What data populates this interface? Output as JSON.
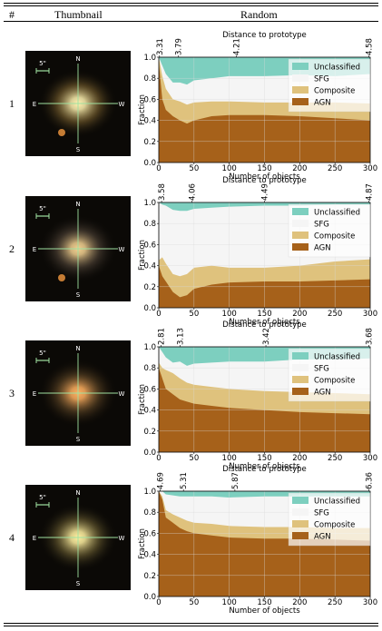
{
  "header": {
    "col1": "#",
    "col2": "Thumbnail",
    "col3": "Random"
  },
  "colors": {
    "unclassified": "#7dcfbf",
    "sfg": "#f5f5f5",
    "composite": "#dfc27d",
    "agn": "#a6611a",
    "grid": "#d9d9d9"
  },
  "legend_labels": [
    "Unclassified",
    "SFG",
    "Composite",
    "AGN"
  ],
  "rows": [
    {
      "label": "1",
      "thumb": {
        "scale": "5\"",
        "n": "N",
        "s": "S",
        "e": "E",
        "w": "W",
        "core_color": "#fff2b0",
        "halo_color": "#9a7a3a",
        "blob": true
      },
      "chart_data": {
        "type": "area",
        "stacking": "fraction",
        "xlabel": "Number of objects",
        "ylabel": "Fraction",
        "top_xlabel": "Distance to prototype",
        "xlim": [
          0,
          300
        ],
        "ylim": [
          0,
          1.0
        ],
        "xticks": [
          0,
          50,
          100,
          150,
          200,
          250,
          300
        ],
        "yticks": [
          "0.0",
          "0.2",
          "0.4",
          "0.6",
          "0.8",
          "1.0"
        ],
        "top_ticks": [
          {
            "x": 1,
            "label": "3.31"
          },
          {
            "x": 28,
            "label": "3.79"
          },
          {
            "x": 110,
            "label": "4.21"
          },
          {
            "x": 298,
            "label": "4.58"
          }
        ],
        "legend_position": "top-right",
        "x": [
          0,
          5,
          10,
          20,
          30,
          40,
          50,
          75,
          100,
          150,
          200,
          250,
          300
        ],
        "series": [
          {
            "name": "AGN",
            "values": [
              0.95,
              0.6,
              0.5,
              0.44,
              0.4,
              0.37,
              0.4,
              0.44,
              0.45,
              0.45,
              0.44,
              0.42,
              0.4
            ]
          },
          {
            "name": "Composite",
            "values": [
              1.0,
              0.82,
              0.7,
              0.6,
              0.58,
              0.55,
              0.57,
              0.58,
              0.58,
              0.57,
              0.57,
              0.57,
              0.56
            ]
          },
          {
            "name": "SFG",
            "values": [
              1.0,
              0.92,
              0.84,
              0.76,
              0.76,
              0.74,
              0.78,
              0.8,
              0.82,
              0.82,
              0.83,
              0.82,
              0.84
            ]
          },
          {
            "name": "Unclassified",
            "values": [
              1,
              1,
              1,
              1,
              1,
              1,
              1,
              1,
              1,
              1,
              1,
              1,
              1
            ]
          }
        ]
      }
    },
    {
      "label": "2",
      "thumb": {
        "scale": "5\"",
        "n": "N",
        "s": "S",
        "e": "E",
        "w": "W",
        "core_color": "#f2d090",
        "halo_color": "#6a5a4a",
        "blob": true
      },
      "chart_data": {
        "type": "area",
        "stacking": "fraction",
        "xlabel": "Number of objects",
        "ylabel": "Fraction",
        "top_xlabel": "Distance to prototype",
        "xlim": [
          0,
          300
        ],
        "ylim": [
          0,
          1.0
        ],
        "xticks": [
          0,
          50,
          100,
          150,
          200,
          250,
          300
        ],
        "yticks": [
          "0.0",
          "0.2",
          "0.4",
          "0.6",
          "0.8",
          "1.0"
        ],
        "top_ticks": [
          {
            "x": 4,
            "label": "3.58"
          },
          {
            "x": 47,
            "label": "4.06"
          },
          {
            "x": 150,
            "label": "4.49"
          },
          {
            "x": 298,
            "label": "4.87"
          }
        ],
        "legend_position": "top-right",
        "x": [
          0,
          5,
          10,
          20,
          30,
          40,
          50,
          75,
          100,
          150,
          200,
          250,
          300
        ],
        "series": [
          {
            "name": "AGN",
            "values": [
              0.4,
              0.3,
              0.25,
              0.15,
              0.1,
              0.12,
              0.18,
              0.22,
              0.24,
              0.25,
              0.25,
              0.26,
              0.27
            ]
          },
          {
            "name": "Composite",
            "values": [
              0.45,
              0.48,
              0.42,
              0.32,
              0.3,
              0.32,
              0.38,
              0.4,
              0.38,
              0.38,
              0.4,
              0.44,
              0.46
            ]
          },
          {
            "name": "SFG",
            "values": [
              1.0,
              0.98,
              0.97,
              0.93,
              0.92,
              0.92,
              0.94,
              0.95,
              0.96,
              0.97,
              0.97,
              0.98,
              0.98
            ]
          },
          {
            "name": "Unclassified",
            "values": [
              1,
              1,
              1,
              1,
              1,
              1,
              1,
              1,
              1,
              1,
              1,
              1,
              1
            ]
          }
        ]
      }
    },
    {
      "label": "3",
      "thumb": {
        "scale": "5\"",
        "n": "N",
        "s": "S",
        "e": "E",
        "w": "W",
        "core_color": "#ffb060",
        "halo_color": "#7a5a30",
        "blob": false
      },
      "chart_data": {
        "type": "area",
        "stacking": "fraction",
        "xlabel": "Number of objects",
        "ylabel": "Fraction",
        "top_xlabel": "Distance to prototype",
        "xlim": [
          0,
          300
        ],
        "ylim": [
          0,
          1.0
        ],
        "xticks": [
          0,
          50,
          100,
          150,
          200,
          250,
          300
        ],
        "yticks": [
          "0.0",
          "0.2",
          "0.4",
          "0.6",
          "0.8",
          "1.0"
        ],
        "top_ticks": [
          {
            "x": 3,
            "label": "2.81"
          },
          {
            "x": 30,
            "label": "3.13"
          },
          {
            "x": 152,
            "label": "3.42"
          },
          {
            "x": 298,
            "label": "3.68"
          }
        ],
        "legend_position": "top-right",
        "x": [
          0,
          5,
          10,
          20,
          30,
          40,
          50,
          75,
          100,
          150,
          200,
          250,
          300
        ],
        "series": [
          {
            "name": "AGN",
            "values": [
              0.8,
              0.7,
              0.6,
              0.55,
              0.5,
              0.48,
              0.46,
              0.44,
              0.42,
              0.4,
              0.38,
              0.37,
              0.36
            ]
          },
          {
            "name": "Composite",
            "values": [
              0.85,
              0.8,
              0.78,
              0.75,
              0.7,
              0.66,
              0.64,
              0.62,
              0.6,
              0.58,
              0.57,
              0.56,
              0.55
            ]
          },
          {
            "name": "SFG",
            "values": [
              1.0,
              0.95,
              0.9,
              0.85,
              0.86,
              0.82,
              0.84,
              0.85,
              0.86,
              0.86,
              0.88,
              0.88,
              0.89
            ]
          },
          {
            "name": "Unclassified",
            "values": [
              1,
              1,
              1,
              1,
              1,
              1,
              1,
              1,
              1,
              1,
              1,
              1,
              1
            ]
          }
        ]
      }
    },
    {
      "label": "4",
      "thumb": {
        "scale": "5\"",
        "n": "N",
        "s": "S",
        "e": "E",
        "w": "W",
        "core_color": "#fff0a0",
        "halo_color": "#8a7a40",
        "blob": false
      },
      "chart_data": {
        "type": "area",
        "stacking": "fraction",
        "xlabel": "Number of objects",
        "ylabel": "Fraction",
        "top_xlabel": "Distance to prototype",
        "xlim": [
          0,
          300
        ],
        "ylim": [
          0,
          1.0
        ],
        "xticks": [
          0,
          50,
          100,
          150,
          200,
          250,
          300
        ],
        "yticks": [
          "0.0",
          "0.2",
          "0.4",
          "0.6",
          "0.8",
          "1.0"
        ],
        "top_ticks": [
          {
            "x": 2,
            "label": "4.69"
          },
          {
            "x": 35,
            "label": "5.31"
          },
          {
            "x": 108,
            "label": "5.87"
          },
          {
            "x": 298,
            "label": "6.36"
          }
        ],
        "legend_position": "top-right",
        "x": [
          0,
          5,
          10,
          20,
          30,
          40,
          50,
          75,
          100,
          150,
          200,
          250,
          300
        ],
        "series": [
          {
            "name": "AGN",
            "values": [
              1.0,
              0.92,
              0.75,
              0.7,
              0.65,
              0.62,
              0.6,
              0.58,
              0.56,
              0.55,
              0.55,
              0.54,
              0.53
            ]
          },
          {
            "name": "Composite",
            "values": [
              1.0,
              0.95,
              0.82,
              0.78,
              0.75,
              0.72,
              0.7,
              0.69,
              0.67,
              0.66,
              0.66,
              0.65,
              0.65
            ]
          },
          {
            "name": "SFG",
            "values": [
              1.0,
              1.0,
              0.97,
              0.96,
              0.95,
              0.95,
              0.95,
              0.95,
              0.94,
              0.95,
              0.95,
              0.95,
              0.95
            ]
          },
          {
            "name": "Unclassified",
            "values": [
              1,
              1,
              1,
              1,
              1,
              1,
              1,
              1,
              1,
              1,
              1,
              1,
              1
            ]
          }
        ]
      }
    }
  ]
}
